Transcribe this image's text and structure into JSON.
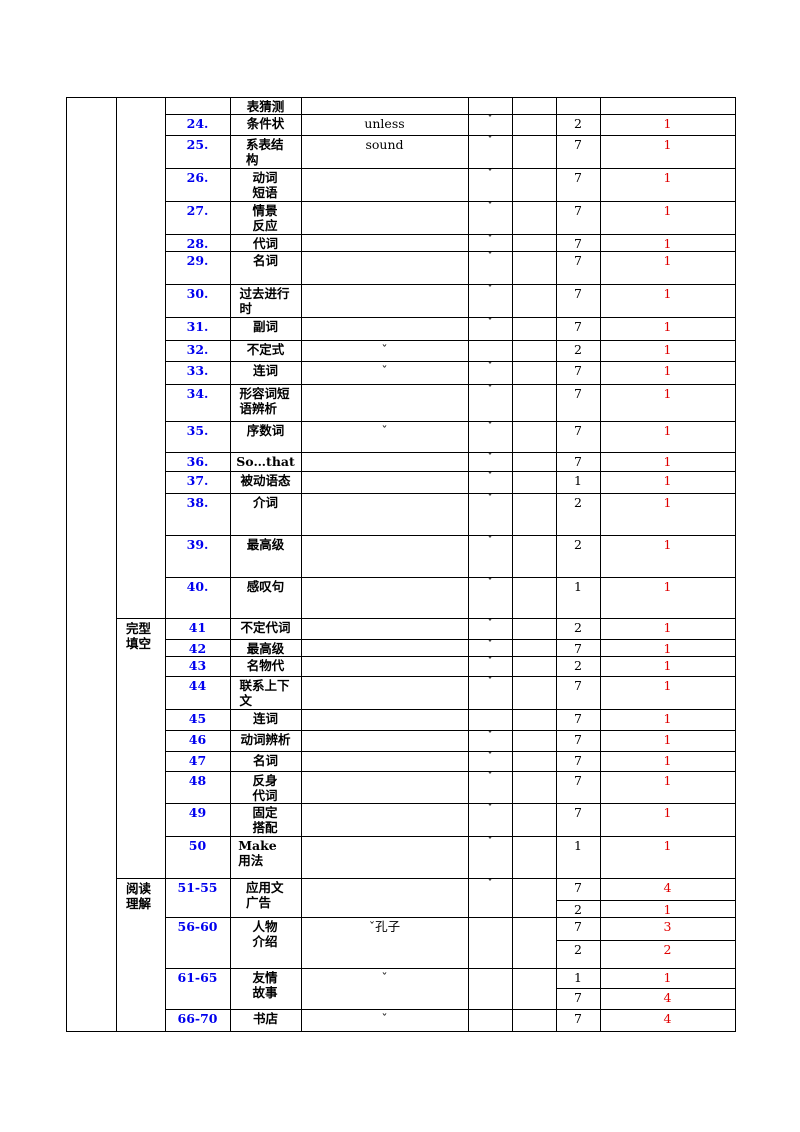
{
  "table": {
    "rows": [
      {
        "topic": "表猜测"
      },
      {
        "num": "24.",
        "topic": "条件状",
        "example": "unless",
        "check": "ˇ",
        "counts": [
          2
        ],
        "scores": [
          1
        ]
      },
      {
        "num": "25.",
        "topic": "系表结构",
        "example": "sound",
        "check": "ˇ",
        "counts": [
          7
        ],
        "scores": [
          1
        ]
      },
      {
        "num": "26.",
        "topic": "动词短语",
        "check": "ˇ",
        "counts": [
          7
        ],
        "scores": [
          1
        ]
      },
      {
        "num": "27.",
        "topic": "情景反应",
        "check": "ˇ",
        "counts": [
          7
        ],
        "scores": [
          1
        ]
      },
      {
        "num": "28.",
        "topic": "代词",
        "check": "ˇ",
        "counts": [
          7
        ],
        "scores": [
          1
        ]
      },
      {
        "num": "29.",
        "topic": "名词",
        "check": "ˇ",
        "counts": [
          7
        ],
        "scores": [
          1
        ]
      },
      {
        "num": "30.",
        "topic": "过去进行时",
        "check": "ˇ",
        "counts": [
          7
        ],
        "scores": [
          1
        ]
      },
      {
        "num": "31.",
        "topic": "副词",
        "check": "ˇ",
        "counts": [
          7
        ],
        "scores": [
          1
        ]
      },
      {
        "num": "32.",
        "topic": "不定式",
        "example": "ˇ",
        "counts": [
          2
        ],
        "scores": [
          1
        ]
      },
      {
        "num": "33.",
        "topic": "连词",
        "example": "ˇ",
        "check": "ˇ",
        "counts": [
          7
        ],
        "scores": [
          1
        ]
      },
      {
        "num": "34.",
        "topic": "形容词短语辨析",
        "check": "ˇ",
        "counts": [
          7
        ],
        "scores": [
          1
        ]
      },
      {
        "num": "35.",
        "topic": "序数词",
        "example": "ˇ",
        "check": "ˇ",
        "counts": [
          7
        ],
        "scores": [
          1
        ]
      },
      {
        "num": "36.",
        "topic": "So…that",
        "check": "ˇ",
        "counts": [
          7
        ],
        "scores": [
          1
        ]
      },
      {
        "num": "37.",
        "topic": "被动语态",
        "check": "ˇ",
        "counts": [
          1
        ],
        "scores": [
          1
        ]
      },
      {
        "num": "38.",
        "topic": "介词",
        "check": "ˇ",
        "counts": [
          2
        ],
        "scores": [
          1
        ]
      },
      {
        "num": "39.",
        "topic": "最高级",
        "check": "ˇ",
        "counts": [
          2
        ],
        "scores": [
          1
        ]
      },
      {
        "num": "40.",
        "topic": "感叹句",
        "check": "ˇ",
        "counts": [
          1
        ],
        "scores": [
          1
        ]
      },
      {
        "section": "完型填空",
        "num": "41",
        "topic": "不定代词",
        "check": "ˇ",
        "counts": [
          2
        ],
        "scores": [
          1
        ]
      },
      {
        "num": "42",
        "topic": "最高级",
        "check": "ˇ",
        "counts": [
          7
        ],
        "scores": [
          1
        ]
      },
      {
        "num": "43",
        "topic": "名物代",
        "check": "ˇ",
        "counts": [
          2
        ],
        "scores": [
          1
        ]
      },
      {
        "num": "44",
        "topic": "联系上下文",
        "check": "ˇ",
        "counts": [
          7
        ],
        "scores": [
          1
        ]
      },
      {
        "num": "45",
        "topic": "连词",
        "counts": [
          7
        ],
        "scores": [
          1
        ]
      },
      {
        "num": "46",
        "topic": "动词辨析",
        "check": "ˇ",
        "counts": [
          7
        ],
        "scores": [
          1
        ]
      },
      {
        "num": "47",
        "topic": "名词",
        "check": "ˇ",
        "counts": [
          7
        ],
        "scores": [
          1
        ]
      },
      {
        "num": "48",
        "topic": "反身代词",
        "check": "ˇ",
        "counts": [
          7
        ],
        "scores": [
          1
        ]
      },
      {
        "num": "49",
        "topic": "固定搭配",
        "check": "ˇ",
        "counts": [
          7
        ],
        "scores": [
          1
        ]
      },
      {
        "num": "50",
        "topic": "Make 用法",
        "check": "ˇ",
        "counts": [
          1
        ],
        "scores": [
          1
        ]
      },
      {
        "section": "阅读理解",
        "num": "51-55",
        "topic": "应用文广告",
        "check": "ˇ",
        "counts": [
          7,
          2
        ],
        "scores": [
          4,
          1
        ]
      },
      {
        "num": "56-60",
        "topic": "人物介绍",
        "example": "ˇ孔子",
        "counts": [
          7,
          2
        ],
        "scores": [
          3,
          2
        ]
      },
      {
        "num": "61-65",
        "topic": "友情故事",
        "example": "ˇ",
        "counts": [
          1,
          7
        ],
        "scores": [
          1,
          4
        ]
      },
      {
        "num": "66-70",
        "topic": "书店",
        "example": "ˇ",
        "counts": [
          7
        ],
        "scores": [
          4
        ]
      }
    ]
  }
}
